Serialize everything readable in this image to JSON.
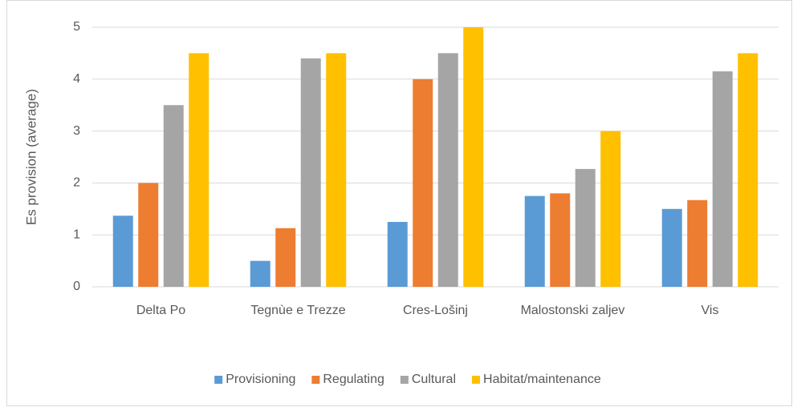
{
  "chart_data": {
    "type": "bar",
    "y_axis_label": "Es provision (average)",
    "categories": [
      "Delta Po",
      "Tegnùe e Trezze",
      "Cres-Lošinj",
      "Malostonski zaljev",
      "Vis"
    ],
    "series": [
      {
        "name": "Provisioning",
        "color": "#5b9bd5",
        "values": [
          1.37,
          0.5,
          1.25,
          1.75,
          1.5
        ]
      },
      {
        "name": "Regulating",
        "color": "#ed7d31",
        "values": [
          2.0,
          1.13,
          4.0,
          1.8,
          1.67
        ]
      },
      {
        "name": "Cultural",
        "color": "#a5a5a5",
        "values": [
          3.5,
          4.4,
          4.5,
          2.27,
          4.15
        ]
      },
      {
        "name": "Habitat/maintenance",
        "color": "#ffc000",
        "values": [
          4.5,
          4.5,
          5,
          3,
          4.5
        ]
      }
    ],
    "ylim": [
      0,
      5
    ],
    "yticks": [
      0,
      1,
      2,
      3,
      4,
      5
    ],
    "grid": true,
    "legend": "bottom"
  }
}
